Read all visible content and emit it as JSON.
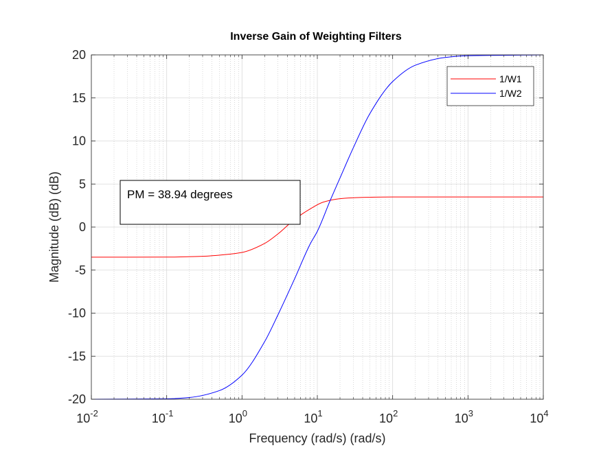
{
  "chart_data": {
    "type": "line",
    "title": "Inverse Gain of Weighting Filters",
    "xlabel": "Frequency (rad/s) (rad/s)",
    "ylabel": "Magnitude (dB) (dB)",
    "x_scale": "log",
    "xlim": [
      0.01,
      10000
    ],
    "ylim": [
      -20,
      20
    ],
    "x_ticks": [
      {
        "base": "10",
        "exp": "-2"
      },
      {
        "base": "10",
        "exp": "-1"
      },
      {
        "base": "10",
        "exp": "0"
      },
      {
        "base": "10",
        "exp": "1"
      },
      {
        "base": "10",
        "exp": "2"
      },
      {
        "base": "10",
        "exp": "3"
      },
      {
        "base": "10",
        "exp": "4"
      }
    ],
    "y_ticks": [
      "-20",
      "-15",
      "-10",
      "-5",
      "0",
      "5",
      "10",
      "15",
      "20"
    ],
    "grid": true,
    "legend_position": "top-right",
    "series": [
      {
        "name": "1/W1",
        "color": "#ff0000",
        "x": [
          0.01,
          0.1,
          0.3,
          0.6,
          1,
          2,
          3,
          5,
          8,
          12,
          20,
          40,
          100,
          1000,
          10000
        ],
        "y": [
          -3.5,
          -3.49,
          -3.4,
          -3.2,
          -2.95,
          -1.9,
          -0.8,
          0.9,
          2.1,
          2.9,
          3.3,
          3.45,
          3.5,
          3.5,
          3.5
        ]
      },
      {
        "name": "1/W2",
        "color": "#0000ff",
        "x": [
          0.01,
          0.1,
          0.2,
          0.5,
          1,
          2,
          3,
          5,
          8,
          10,
          15,
          20,
          30,
          50,
          100,
          200,
          500,
          1000,
          10000
        ],
        "y": [
          -20,
          -19.95,
          -19.8,
          -19,
          -17.2,
          -13.3,
          -10.2,
          -6,
          -2,
          -0.5,
          3.2,
          5.7,
          9.2,
          13.2,
          16.9,
          18.8,
          19.7,
          19.9,
          20
        ]
      }
    ],
    "annotation": "PM = 38.94 degrees"
  }
}
